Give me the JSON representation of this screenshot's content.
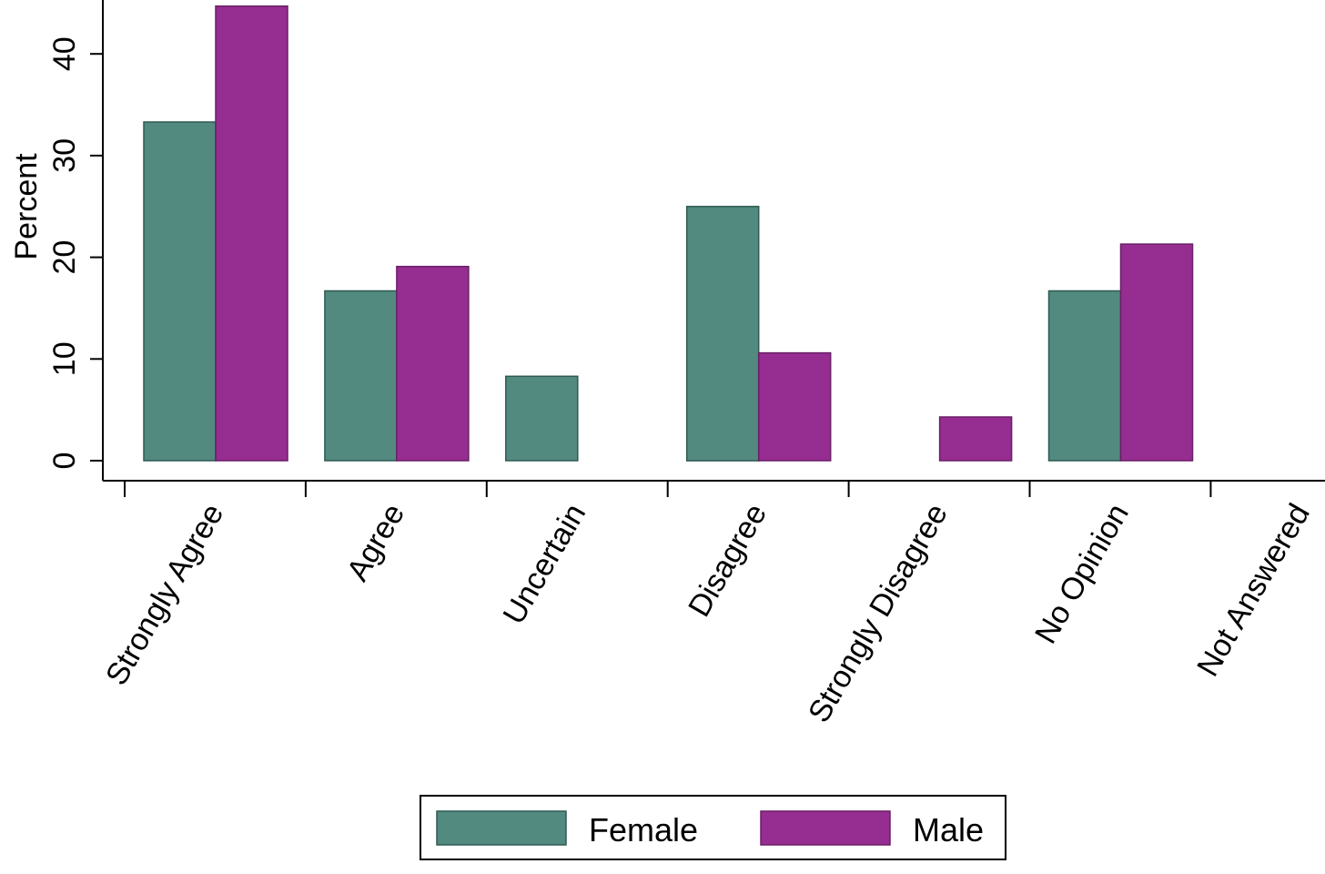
{
  "chart_data": {
    "type": "bar",
    "ylabel": "Percent",
    "xlabel": "",
    "title": "",
    "ylim": [
      0,
      45
    ],
    "yticks": [
      0,
      10,
      20,
      30,
      40
    ],
    "categories": [
      "Strongly Agree",
      "Agree",
      "Uncertain",
      "Disagree",
      "Strongly Disagree",
      "No Opinion",
      "Not Answered"
    ],
    "series": [
      {
        "name": "Female",
        "color": "#528a80",
        "values": [
          33.3,
          16.7,
          8.3,
          25.0,
          0,
          16.7,
          0
        ]
      },
      {
        "name": "Male",
        "color": "#962d91",
        "values": [
          44.7,
          19.1,
          0,
          10.6,
          4.3,
          21.3,
          0
        ]
      }
    ],
    "legend_position": "bottom",
    "grid": false
  }
}
